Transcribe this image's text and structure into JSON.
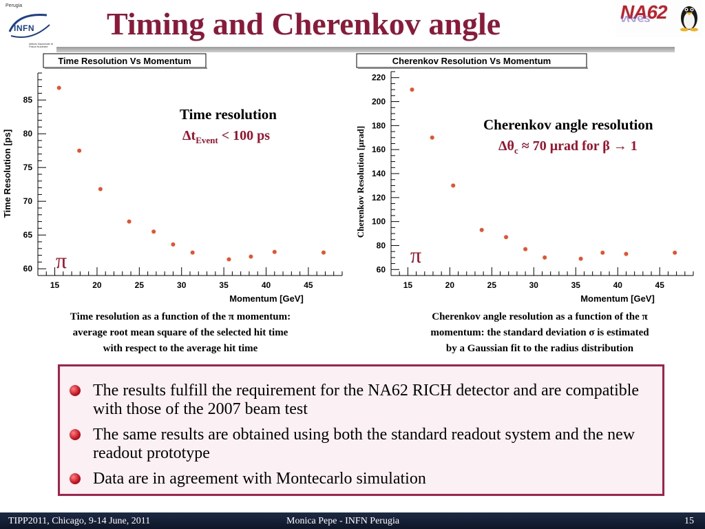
{
  "header": {
    "title": "Timing and Cherenkov angle",
    "infn_logo": {
      "city": "Perugia",
      "name": "INFN",
      "subtitle": "Istituto Nazionale di Fisica Nucleare",
      "icon": "infn-logo-icon"
    },
    "na62_logo": {
      "name": "NA62",
      "icon": "tux-penguin-icon"
    }
  },
  "plots": {
    "left": {
      "annotation_title": "Time resolution",
      "annotation_delta": "Δt",
      "annotation_sub": "Event",
      "annotation_value": " < 100 ps",
      "particle": "π",
      "caption_lines": [
        "Time resolution as a function of the π momentum:",
        "average root mean square of the selected hit time",
        "with respect to the average hit time"
      ]
    },
    "right": {
      "annotation_title": "Cherenkov angle resolution",
      "annotation_delta": "Δθ",
      "annotation_sub": "c",
      "annotation_value": " ≈ 70 μrad for β → 1",
      "particle": "π",
      "caption_lines": [
        "Cherenkov angle resolution as a function of the π",
        "momentum: the standard deviation σ is estimated",
        "by a Gaussian fit to the radius distribution"
      ]
    }
  },
  "chart_data": [
    {
      "type": "scatter",
      "title": "Time Resolution Vs Momentum",
      "xlabel": "Momentum [GeV]",
      "ylabel": "Time Resolution [ps]",
      "xlim": [
        13,
        49
      ],
      "ylim": [
        59,
        89
      ],
      "x_ticks": [
        15,
        20,
        25,
        30,
        35,
        40,
        45
      ],
      "y_ticks": [
        60,
        65,
        70,
        75,
        80,
        85
      ],
      "x_minor": 1,
      "y_minor": 1,
      "grid": false,
      "marker_color": "#e8512a",
      "series": [
        {
          "x": [
            15.5,
            17.9,
            20.4,
            23.8,
            26.7,
            29.0,
            31.3,
            35.6,
            38.2,
            41.0,
            46.8
          ],
          "y": [
            86.8,
            77.5,
            71.8,
            67.0,
            65.5,
            63.6,
            62.4,
            61.4,
            61.8,
            62.5,
            62.4
          ]
        }
      ]
    },
    {
      "type": "scatter",
      "title": "Cherenkov Resolution Vs Momentum",
      "xlabel": "Momentum [GeV]",
      "ylabel": "Cherenkov Resolution  [μrad]",
      "xlim": [
        13,
        49
      ],
      "ylim": [
        55,
        225
      ],
      "x_ticks": [
        15,
        20,
        25,
        30,
        35,
        40,
        45
      ],
      "y_ticks": [
        60,
        80,
        100,
        120,
        140,
        160,
        180,
        200,
        220
      ],
      "x_minor": 1,
      "y_minor": 5,
      "grid": false,
      "marker_color": "#e8512a",
      "series": [
        {
          "x": [
            15.5,
            17.9,
            20.4,
            23.8,
            26.7,
            29.0,
            31.3,
            35.6,
            38.2,
            41.0,
            46.8
          ],
          "y": [
            210,
            170,
            130,
            93,
            87,
            77,
            70,
            69,
            74,
            73,
            74
          ]
        }
      ]
    }
  ],
  "results": {
    "items": [
      "The results fulfill the requirement for the NA62 RICH detector and are compatible with those of the 2007 beam test",
      "The same results are obtained using both the standard readout system and the new readout prototype",
      "Data are in agreement with Montecarlo simulation"
    ]
  },
  "footer": {
    "conference": "TIPP2011, Chicago, 9-14 June, 2011",
    "author": "Monica Pepe - INFN Perugia",
    "page": "15"
  },
  "colors": {
    "title": "#8b1a3a",
    "accent": "#a0102a",
    "box_border": "#a8204a",
    "box_bg": "#fbf1f4",
    "footer_bg": "#141e34",
    "marker": "#e8512a"
  }
}
